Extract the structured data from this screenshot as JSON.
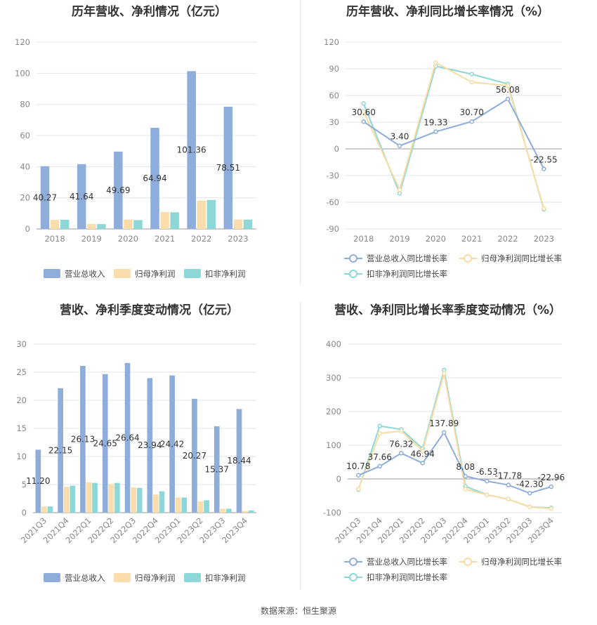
{
  "colors": {
    "revenue": "#8eaddb",
    "net_profit": "#fbdcab",
    "deducted": "#8ed7d7",
    "rev_line": "#8eaddb",
    "np_line": "#f9dca3",
    "ded_line": "#8ed7d7",
    "grid": "#e6e6e6",
    "axis_text": "#888888",
    "title": "#333333"
  },
  "footer": "数据来源：恒生聚源",
  "chart_data": [
    {
      "type": "bar",
      "title": "历年营收、净利情况（亿元）",
      "categories": [
        "2018",
        "2019",
        "2020",
        "2021",
        "2022",
        "2023"
      ],
      "ylim": [
        0,
        120
      ],
      "yticks": [
        0,
        20,
        40,
        60,
        80,
        100,
        120
      ],
      "series": [
        {
          "name": "营业总收入",
          "values": [
            40.27,
            41.64,
            49.69,
            64.94,
            101.36,
            78.51
          ],
          "labels": [
            "40.27",
            "41.64",
            "49.69",
            "64.94",
            "101.36",
            "78.51"
          ]
        },
        {
          "name": "归母净利润",
          "values": [
            5.8,
            3.2,
            6.0,
            10.8,
            18.2,
            6.0
          ]
        },
        {
          "name": "扣非净利润",
          "values": [
            5.9,
            3.1,
            5.7,
            10.7,
            18.6,
            6.0
          ]
        }
      ],
      "legend": [
        "营业总收入",
        "归母净利润",
        "扣非净利润"
      ]
    },
    {
      "type": "line",
      "title": "历年营收、净利同比增长率情况（%）",
      "categories": [
        "2018",
        "2019",
        "2020",
        "2021",
        "2022",
        "2023"
      ],
      "ylim": [
        -90,
        120
      ],
      "yticks": [
        -90,
        -60,
        -30,
        0,
        30,
        60,
        90,
        120
      ],
      "series": [
        {
          "name": "营业总收入同比增长率",
          "values": [
            30.6,
            3.4,
            19.33,
            30.7,
            56.08,
            -22.55
          ],
          "labels": [
            "30.60",
            "3.40",
            "19.33",
            "30.70",
            "56.08",
            "-22.55"
          ]
        },
        {
          "name": "归母净利润同比增长率",
          "values": [
            42.0,
            -46.0,
            97.0,
            75.0,
            71.0,
            -67.0
          ]
        },
        {
          "name": "扣非净利润同比增长率",
          "values": [
            51.0,
            -50.0,
            93.0,
            84.0,
            73.0,
            -68.0
          ]
        }
      ],
      "legend": [
        "营业总收入同比增长率",
        "归母净利润同比增长率",
        "扣非净利润同比增长率"
      ]
    },
    {
      "type": "bar",
      "title": "营收、净利季度变动情况（亿元）",
      "categories": [
        "2021Q3",
        "2021Q4",
        "2022Q1",
        "2022Q2",
        "2022Q3",
        "2022Q4",
        "2023Q1",
        "2023Q2",
        "2023Q3",
        "2023Q4"
      ],
      "ylim": [
        0,
        30
      ],
      "yticks": [
        0,
        5,
        10,
        15,
        20,
        25,
        30
      ],
      "series": [
        {
          "name": "营业总收入",
          "values": [
            11.2,
            22.15,
            26.13,
            24.65,
            26.64,
            23.94,
            24.42,
            20.27,
            15.37,
            18.44
          ],
          "labels": [
            "11.20",
            "22.15",
            "26.13",
            "24.65",
            "26.64",
            "23.94",
            "24.42",
            "20.27",
            "15.37",
            "18.44"
          ]
        },
        {
          "name": "归母净利润",
          "values": [
            1.1,
            4.6,
            5.4,
            5.1,
            4.5,
            3.2,
            2.7,
            2.0,
            0.7,
            0.3
          ]
        },
        {
          "name": "扣非净利润",
          "values": [
            1.1,
            4.8,
            5.3,
            5.3,
            4.4,
            3.8,
            2.7,
            2.2,
            0.7,
            0.4
          ]
        }
      ],
      "legend": [
        "营业总收入",
        "归母净利润",
        "扣非净利润"
      ]
    },
    {
      "type": "line",
      "title": "营收、净利同比增长率季度变动情况（%）",
      "categories": [
        "2021Q3",
        "2021Q4",
        "2022Q1",
        "2022Q2",
        "2022Q3",
        "2022Q4",
        "2023Q1",
        "2023Q2",
        "2023Q3",
        "2023Q4"
      ],
      "ylim": [
        -100,
        400
      ],
      "yticks": [
        -100,
        0,
        100,
        200,
        300,
        400
      ],
      "series": [
        {
          "name": "营业总收入同比增长率",
          "values": [
            10.78,
            37.66,
            76.32,
            46.94,
            137.89,
            8.08,
            -6.53,
            -17.78,
            -42.3,
            -22.96
          ],
          "labels": [
            "10.78",
            "37.66",
            "76.32",
            "46.94",
            "137.89",
            "8.08",
            "-6.53",
            "-17.78",
            "-42.30",
            "-22.96"
          ]
        },
        {
          "name": "归母净利润同比增长率",
          "values": [
            -30.0,
            135.0,
            142.0,
            83.0,
            313.0,
            -30.0,
            -47.0,
            -60.0,
            -83.0,
            -88.0
          ]
        },
        {
          "name": "扣非净利润同比增长率",
          "values": [
            -32.0,
            157.0,
            147.0,
            90.0,
            323.0,
            -22.0,
            -47.0,
            -60.0,
            -83.0,
            -86.0
          ]
        }
      ],
      "legend": [
        "营业总收入同比增长率",
        "归母净利润同比增长率",
        "扣非净利润同比增长率"
      ]
    }
  ]
}
